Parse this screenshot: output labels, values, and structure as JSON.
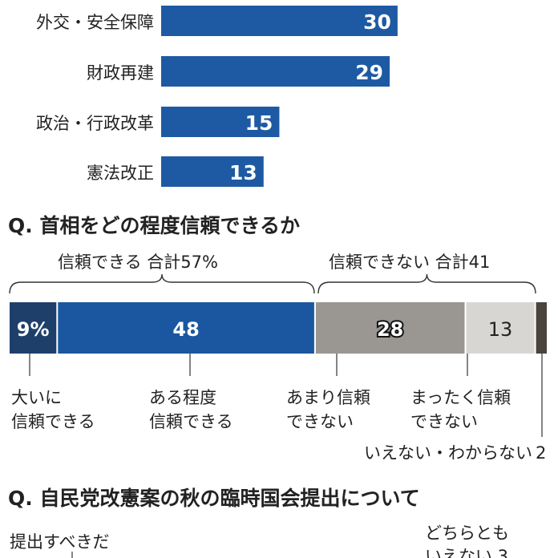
{
  "chart_data": [
    {
      "type": "bar",
      "orientation": "horizontal",
      "categories": [
        "外交・安全保障",
        "財政再建",
        "政治・行政改革",
        "憲法改正"
      ],
      "values": [
        30,
        29,
        15,
        13
      ],
      "color": "#1e5aa3"
    },
    {
      "type": "stacked-bar",
      "title": "Q. 首相をどの程度信頼できるか",
      "groups": [
        {
          "label": "信頼できる 合計57%"
        },
        {
          "label": "信頼できない 合計41"
        }
      ],
      "categories": [
        "大いに\n信頼できる",
        "ある程度\n信頼できる",
        "あまり信頼\nできない",
        "まったく信頼\nできない",
        "いえない・わからない"
      ],
      "values": [
        9,
        48,
        28,
        13,
        2
      ],
      "value_labels": [
        "9%",
        "48",
        "28",
        "13",
        "2"
      ],
      "colors": [
        "#1f3f6b",
        "#1a57a0",
        "#9a9691",
        "#d8d6d3",
        "#4a443d"
      ]
    },
    {
      "type": "stacked-bar",
      "title": "Q. 自民党改憲案の秋の臨時国会提出について",
      "categories": [
        "提出すべきだ",
        "どちらとも\nいえない"
      ],
      "value_labels": [
        "",
        "3"
      ]
    }
  ]
}
